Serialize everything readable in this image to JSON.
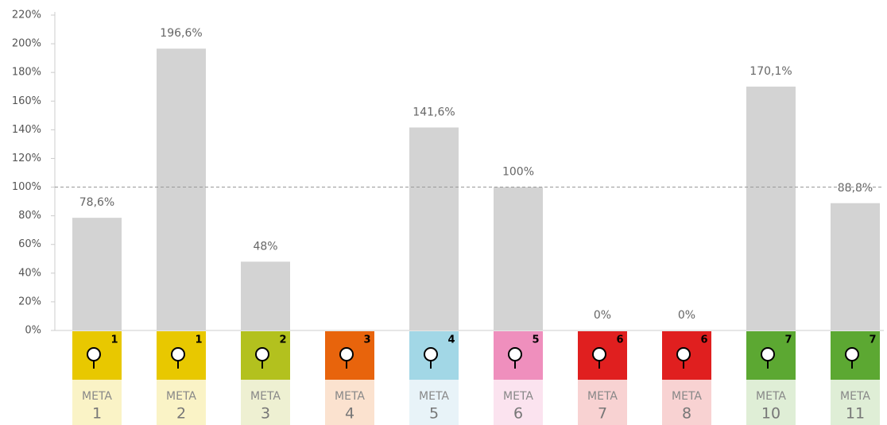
{
  "chart_data": {
    "type": "bar",
    "category_label": "META",
    "categories": [
      "1",
      "2",
      "3",
      "4",
      "5",
      "6",
      "7",
      "8",
      "10",
      "11"
    ],
    "values": [
      78.6,
      196.6,
      48,
      null,
      141.6,
      100,
      0,
      0,
      170.1,
      88.8
    ],
    "value_labels": [
      "78,6%",
      "196,6%",
      "48%",
      null,
      "141,6%",
      "100%",
      "0%",
      "0%",
      "170,1%",
      "88,8%"
    ],
    "goals": [
      1,
      1,
      2,
      3,
      4,
      5,
      6,
      6,
      7,
      7
    ],
    "color": "#d3d3d3",
    "icon_colors": [
      "#e8c800",
      "#e8c800",
      "#b3c11e",
      "#e8640c",
      "#a2d7e6",
      "#ef8fbd",
      "#e01f1f",
      "#e01f1f",
      "#5ca832",
      "#5ca832"
    ],
    "label_colors": [
      "#faf3c6",
      "#faf3c6",
      "#eef0d2",
      "#fbe2cf",
      "#e8f3f8",
      "#fbe3ef",
      "#f8d2d2",
      "#f8d2d2",
      "#dfeed6",
      "#dfeed6"
    ],
    "ylim": [
      0,
      220
    ],
    "yticks": [
      {
        "value": 0,
        "label": "0%"
      },
      {
        "value": 20,
        "label": "20%"
      },
      {
        "value": 40,
        "label": "40%"
      },
      {
        "value": 60,
        "label": "60%"
      },
      {
        "value": 80,
        "label": "80%"
      },
      {
        "value": 100,
        "label": "100%"
      },
      {
        "value": 120,
        "label": "120%"
      },
      {
        "value": 140,
        "label": "140%"
      },
      {
        "value": 160,
        "label": "160%"
      },
      {
        "value": 180,
        "label": "180%"
      },
      {
        "value": 200,
        "label": "200%"
      },
      {
        "value": 220,
        "label": "220%"
      }
    ],
    "reference_line": 100
  }
}
